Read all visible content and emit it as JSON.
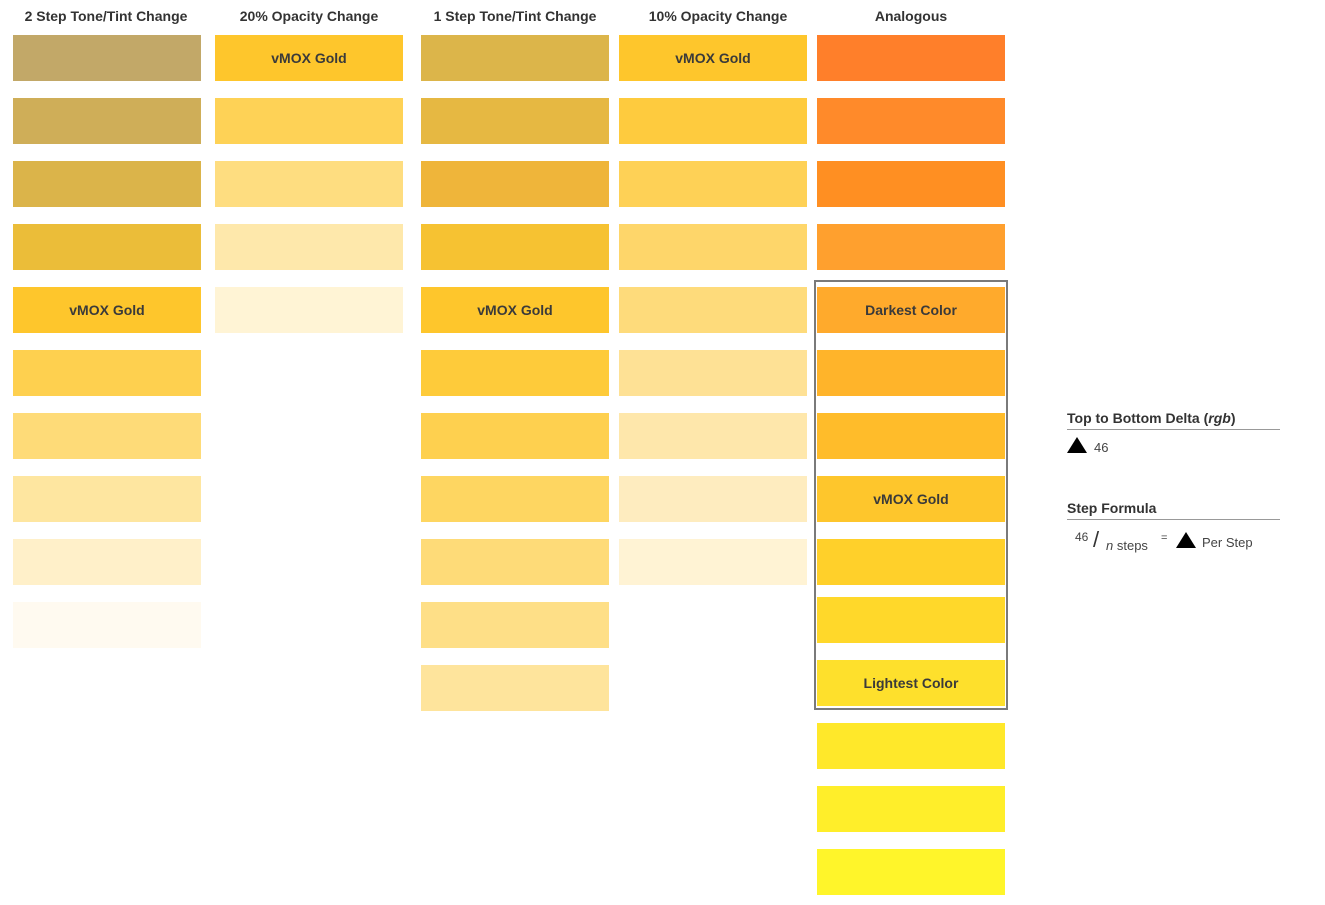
{
  "columns": [
    {
      "title": "2 Step Tone/Tint Change",
      "swatches": [
        {
          "color": "#c2a868",
          "label": ""
        },
        {
          "color": "#cfae58",
          "label": ""
        },
        {
          "color": "#dbb44a",
          "label": ""
        },
        {
          "color": "#ebbd39",
          "label": ""
        },
        {
          "color": "#fec62c",
          "label": "vMOX Gold"
        },
        {
          "color": "#fed04f",
          "label": ""
        },
        {
          "color": "#fedb78",
          "label": ""
        },
        {
          "color": "#fee6a0",
          "label": ""
        },
        {
          "color": "#fff0c9",
          "label": ""
        },
        {
          "color": "#fffaf0",
          "label": ""
        }
      ]
    },
    {
      "title": "20% Opacity Change",
      "swatches": [
        {
          "color": "#fec62c",
          "label": "vMOX Gold"
        },
        {
          "color": "#fed256",
          "label": ""
        },
        {
          "color": "#fedd80",
          "label": ""
        },
        {
          "color": "#fee8ab",
          "label": ""
        },
        {
          "color": "#fff4d5",
          "label": ""
        }
      ]
    },
    {
      "title": "1 Step Tone/Tint Change",
      "swatches": [
        {
          "color": "#dcb54a",
          "label": ""
        },
        {
          "color": "#e6b842",
          "label": ""
        },
        {
          "color": "#efb53a",
          "label": ""
        },
        {
          "color": "#f6c232",
          "label": ""
        },
        {
          "color": "#fec62c",
          "label": "vMOX Gold"
        },
        {
          "color": "#fecb3a",
          "label": ""
        },
        {
          "color": "#fed04f",
          "label": ""
        },
        {
          "color": "#fed661",
          "label": ""
        },
        {
          "color": "#fedb78",
          "label": ""
        },
        {
          "color": "#fedf87",
          "label": ""
        },
        {
          "color": "#fee49c",
          "label": ""
        }
      ]
    },
    {
      "title": "10% Opacity Change",
      "swatches": [
        {
          "color": "#fec62c",
          "label": "vMOX Gold"
        },
        {
          "color": "#fecb3e",
          "label": ""
        },
        {
          "color": "#fed156",
          "label": ""
        },
        {
          "color": "#fed66a",
          "label": ""
        },
        {
          "color": "#fedb7b",
          "label": ""
        },
        {
          "color": "#fee195",
          "label": ""
        },
        {
          "color": "#fee7ab",
          "label": ""
        },
        {
          "color": "#feecbf",
          "label": ""
        },
        {
          "color": "#fff3d4",
          "label": ""
        }
      ]
    },
    {
      "title": "Analogous",
      "swatches": [
        {
          "color": "#ff7f2a",
          "label": ""
        },
        {
          "color": "#ff8a2a",
          "label": ""
        },
        {
          "color": "#ff8f22",
          "label": ""
        },
        {
          "color": "#ffa02e",
          "label": ""
        },
        {
          "color": "#ffaa2c",
          "label": "Darkest Color"
        },
        {
          "color": "#ffb42a",
          "label": ""
        },
        {
          "color": "#ffbc2a",
          "label": ""
        },
        {
          "color": "#fec62c",
          "label": "vMOX Gold"
        },
        {
          "color": "#ffd02a",
          "label": ""
        },
        {
          "color": "#ffd82a",
          "label": ""
        },
        {
          "color": "#fee02c",
          "label": "Lightest Color"
        },
        {
          "color": "#ffe82a",
          "label": ""
        },
        {
          "color": "#ffee2a",
          "label": ""
        },
        {
          "color": "#fff52a",
          "label": ""
        }
      ]
    }
  ],
  "side_panel": {
    "delta_heading": "Top to Bottom Delta (",
    "delta_heading_unit": "rgb",
    "delta_heading_close": ")",
    "delta_value": "46",
    "formula_heading": "Step Formula",
    "formula_numerator": "46",
    "formula_slash": "/",
    "formula_var": "n",
    "formula_denominator": " steps",
    "formula_equals": "=",
    "formula_result": "Per Step"
  }
}
